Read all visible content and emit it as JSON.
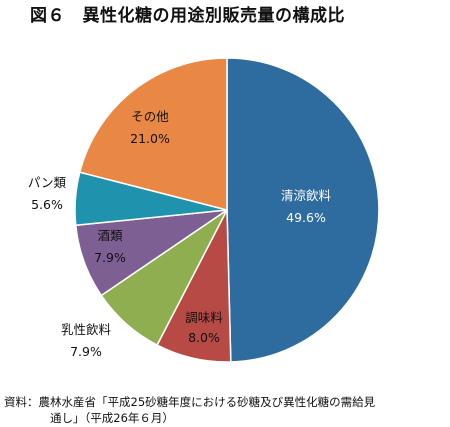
{
  "title": "図６　異性化糖の用途別販売量の構成比",
  "chart_data": {
    "type": "pie",
    "start_angle_deg": 0,
    "direction": "clockwise",
    "slices": [
      {
        "label": "清涼飲料",
        "value": 49.6,
        "display": "49.6%",
        "color": "#2e6b9e",
        "label_color": "#ffffff"
      },
      {
        "label": "調味料",
        "value": 8.0,
        "display": "8.0%",
        "color": "#b84a46",
        "label_color": "#111111"
      },
      {
        "label": "乳性飲料",
        "value": 7.9,
        "display": "7.9%",
        "color": "#8fae4f",
        "label_color": "#111111"
      },
      {
        "label": "酒類",
        "value": 7.9,
        "display": "7.9%",
        "color": "#7e5f93",
        "label_color": "#111111"
      },
      {
        "label": "パン類",
        "value": 5.6,
        "display": "5.6%",
        "color": "#1f93ae",
        "label_color": "#111111"
      },
      {
        "label": "その他",
        "value": 21.0,
        "display": "21.0%",
        "color": "#e88844",
        "label_color": "#111111"
      }
    ]
  },
  "note": {
    "line1": "資料：農林水産省「平成25砂糖年度における砂糖及び異性化糖の需給見",
    "line2": "通し」（平成26年６月）"
  }
}
